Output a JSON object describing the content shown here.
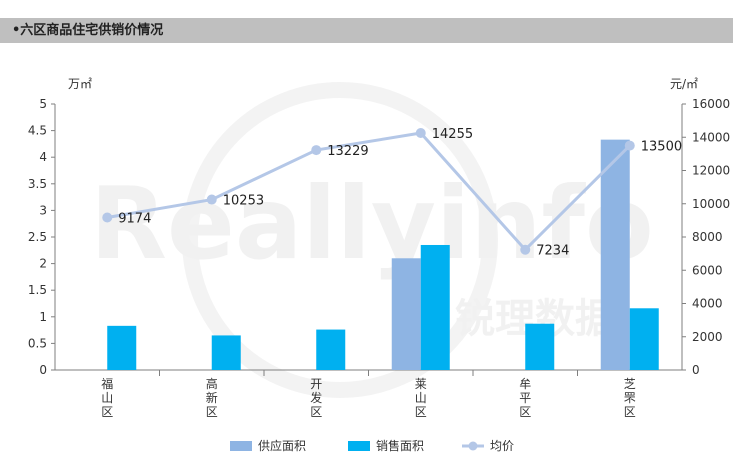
{
  "header": {
    "title": "•六区商品住宅供销价情况"
  },
  "watermark": {
    "main": "Reallyinfo",
    "sub": "锐理数据"
  },
  "colors": {
    "supply": "#8eb4e3",
    "sales": "#00b0f0",
    "price": "#b4c7e7",
    "axis": "#7f7f7f",
    "text": "#333333"
  },
  "chart_data": {
    "type": "bar",
    "categories": [
      "福山区",
      "高新区",
      "开发区",
      "莱山区",
      "牟平区",
      "芝罘区"
    ],
    "series": [
      {
        "name": "供应面积",
        "type": "bar",
        "axis": "left",
        "values": [
          0,
          0,
          0,
          2.1,
          0,
          4.33
        ]
      },
      {
        "name": "销售面积",
        "type": "bar",
        "axis": "left",
        "values": [
          0.83,
          0.65,
          0.76,
          2.35,
          0.87,
          1.16
        ]
      },
      {
        "name": "均价",
        "type": "line",
        "axis": "right",
        "values": [
          9174,
          10253,
          13229,
          14255,
          7234,
          13500
        ]
      }
    ],
    "ylabel_left": "万㎡",
    "ylabel_right": "元/㎡",
    "ylim_left": [
      0,
      5
    ],
    "ylim_right": [
      0,
      16000
    ],
    "yticks_left": [
      "0",
      "0.5",
      "1",
      "1.5",
      "2",
      "2.5",
      "3",
      "3.5",
      "4",
      "4.5",
      "5"
    ],
    "yticks_right": [
      "0",
      "2000",
      "4000",
      "6000",
      "8000",
      "10000",
      "12000",
      "14000",
      "16000"
    ],
    "data_labels": [
      "9174",
      "10253",
      "13229",
      "14255",
      "7234",
      "13500"
    ],
    "legend_position": "bottom",
    "grid": false
  }
}
